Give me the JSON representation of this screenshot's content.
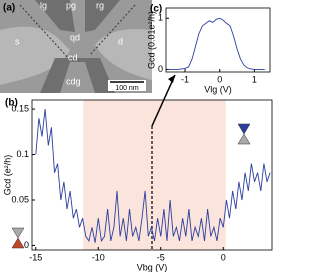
{
  "panel_a": {
    "label": "(a)",
    "lg": "lg",
    "pg": "pg",
    "rg": "rg",
    "s": "s",
    "qd": "qd",
    "d": "d",
    "cd": "cd",
    "cdg": "cdg",
    "scale": "100 nm"
  },
  "chart_data": [
    {
      "type": "line",
      "label": "(b)",
      "y_label": "Gcd (e²/h)",
      "x_label": "Vbg (V)",
      "xlim": [
        -15.3,
        3.9
      ],
      "ylim": [
        -0.005,
        0.16
      ],
      "xticks": [
        -15,
        -10,
        -5,
        0
      ],
      "yticks": [
        0,
        0.05,
        0.1,
        0.15
      ],
      "color": "#2b3f9e",
      "shade": [
        -11.2,
        0.2
      ],
      "shade_color": "#fbe4dc",
      "marker_x": -5.7,
      "x": [
        -15,
        -14.75,
        -14.5,
        -14.25,
        -14,
        -13.75,
        -13.5,
        -13.25,
        -13,
        -12.75,
        -12.5,
        -12.25,
        -12,
        -11.75,
        -11.5,
        -11.25,
        -11,
        -10.75,
        -10.5,
        -10.25,
        -10,
        -9.75,
        -9.5,
        -9.25,
        -9,
        -8.75,
        -8.5,
        -8.25,
        -8,
        -7.75,
        -7.5,
        -7.25,
        -7,
        -6.75,
        -6.5,
        -6.25,
        -6,
        -5.75,
        -5.5,
        -5.25,
        -5,
        -4.75,
        -4.5,
        -4.25,
        -4,
        -3.75,
        -3.5,
        -3.25,
        -3,
        -2.75,
        -2.5,
        -2.25,
        -2,
        -1.75,
        -1.5,
        -1.25,
        -1,
        -0.75,
        -0.5,
        -0.25,
        0,
        0.25,
        0.5,
        0.75,
        1,
        1.25,
        1.5,
        1.75,
        2,
        2.25,
        2.5,
        2.75,
        3,
        3.25,
        3.5,
        3.75
      ],
      "values": [
        0.1,
        0.14,
        0.12,
        0.15,
        0.11,
        0.13,
        0.08,
        0.09,
        0.05,
        0.07,
        0.04,
        0.06,
        0.03,
        0.04,
        0.02,
        0.03,
        0.01,
        0.005,
        0.02,
        0.003,
        0.03,
        0.005,
        0.01,
        0.04,
        0.005,
        0.02,
        0.06,
        0.01,
        0.03,
        0.005,
        0.04,
        0.01,
        0.02,
        0.005,
        0.03,
        0.06,
        0.01,
        0.02,
        0.005,
        0.03,
        0.01,
        0.04,
        0.005,
        0.05,
        0.01,
        0.02,
        0.005,
        0.03,
        0.01,
        0.04,
        0.005,
        0.02,
        0.01,
        0.03,
        0.005,
        0.04,
        0.01,
        0.02,
        0.005,
        0.03,
        0.02,
        0.05,
        0.03,
        0.06,
        0.04,
        0.07,
        0.05,
        0.08,
        0.06,
        0.09,
        0.07,
        0.08,
        0.06,
        0.09,
        0.07,
        0.08
      ]
    },
    {
      "type": "line",
      "label": "(c)",
      "y_label": "Gcd (0.01e²/h)",
      "x_label": "Vlg (V)",
      "xlim": [
        -1.55,
        1.45
      ],
      "ylim": [
        -0.05,
        1.2
      ],
      "xticks": [
        -1,
        0,
        1
      ],
      "yticks": [
        0,
        1
      ],
      "color": "#2b3f9e",
      "x": [
        -1.5,
        -1.4,
        -1.3,
        -1.2,
        -1.1,
        -1.0,
        -0.9,
        -0.8,
        -0.7,
        -0.6,
        -0.5,
        -0.4,
        -0.3,
        -0.2,
        -0.1,
        0,
        0.1,
        0.2,
        0.3,
        0.4,
        0.5,
        0.6,
        0.7,
        0.8,
        0.9,
        1.0,
        1.1,
        1.2,
        1.3
      ],
      "values": [
        0,
        0,
        0,
        0,
        0.01,
        0.02,
        0.05,
        0.2,
        0.45,
        0.7,
        0.85,
        0.9,
        0.95,
        0.92,
        0.98,
        1.0,
        0.96,
        0.9,
        0.85,
        0.65,
        0.4,
        0.2,
        0.08,
        0.03,
        0.01,
        0,
        0,
        0,
        0
      ]
    }
  ]
}
